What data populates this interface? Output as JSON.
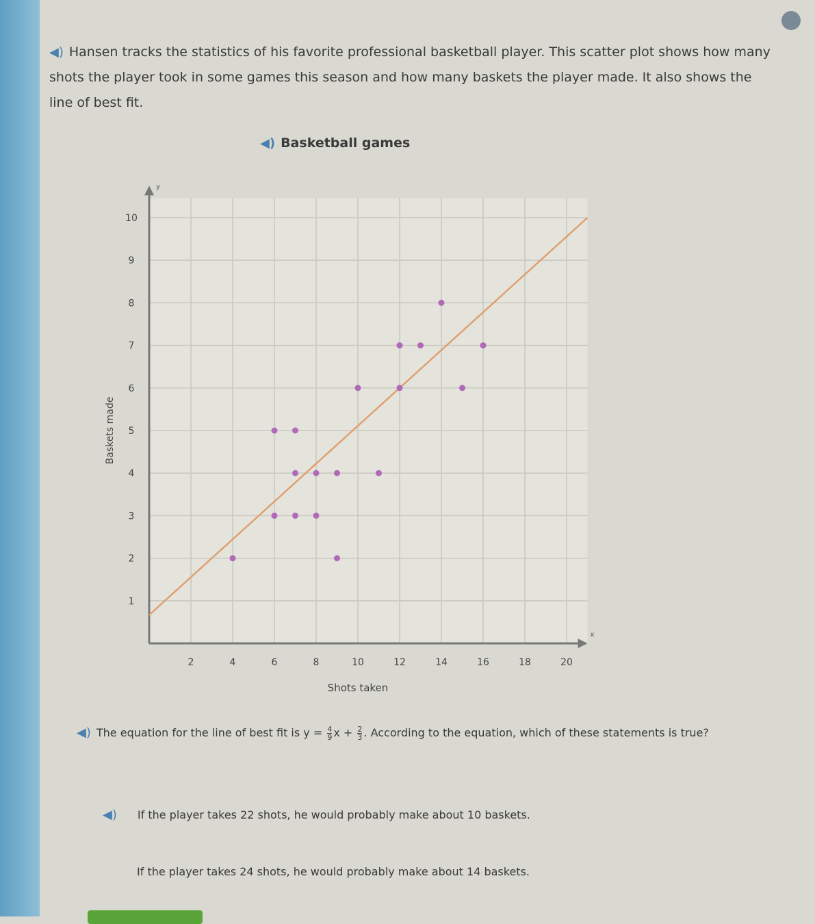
{
  "intro": "Hansen tracks the statistics of his favorite professional basketball player. This scatter plot shows how many shots the player took in some games this season and how many baskets the player made. It also shows the line of best fit.",
  "question": {
    "prefix": "The equation for the line of best fit is y =",
    "slope_num": "4",
    "slope_den": "9",
    "mid": "x +",
    "int_num": "2",
    "int_den": "3",
    "suffix": ". According to the equation, which of these statements is true?"
  },
  "options": [
    "If the player takes 22 shots, he would probably make about 10 baskets.",
    "If the player takes 24 shots, he would probably make about 14 baskets."
  ],
  "chart_data": {
    "type": "scatter",
    "title": "Basketball games",
    "xlabel": "Shots taken",
    "ylabel": "Baskets made",
    "x_axis_letter": "x",
    "y_axis_letter": "y",
    "xlim": [
      0,
      21
    ],
    "ylim": [
      0,
      10.3
    ],
    "xticks": [
      2,
      4,
      6,
      8,
      10,
      12,
      14,
      16,
      18,
      20
    ],
    "yticks": [
      1,
      2,
      3,
      4,
      5,
      6,
      7,
      8,
      9,
      10
    ],
    "grid": true,
    "points": [
      [
        4,
        2
      ],
      [
        6,
        3
      ],
      [
        7,
        3
      ],
      [
        8,
        3
      ],
      [
        9,
        2
      ],
      [
        7,
        4
      ],
      [
        8,
        4
      ],
      [
        9,
        4
      ],
      [
        11,
        4
      ],
      [
        6,
        5
      ],
      [
        7,
        5
      ],
      [
        10,
        6
      ],
      [
        12,
        6
      ],
      [
        15,
        6
      ],
      [
        12,
        7
      ],
      [
        13,
        7
      ],
      [
        16,
        7
      ],
      [
        14,
        8
      ]
    ],
    "best_fit": {
      "slope": 0.4444,
      "intercept": 0.6667,
      "x_range": [
        0,
        21
      ]
    },
    "colors": {
      "points": "#b06ab8",
      "line": "#e0a070",
      "grid": "#c8c8c0",
      "axis": "#777777"
    }
  }
}
